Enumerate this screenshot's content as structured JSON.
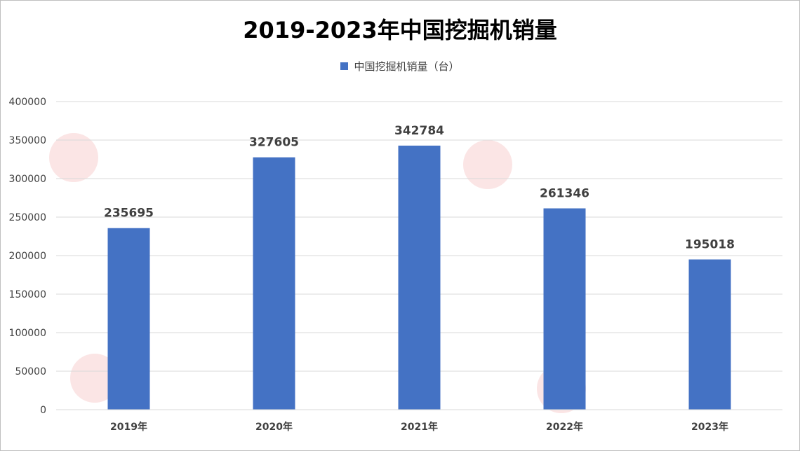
{
  "chart_data": {
    "type": "bar",
    "title": "2019-2023年中国挖掘机销量",
    "xlabel": "",
    "ylabel": "",
    "categories": [
      "2019年",
      "2020年",
      "2021年",
      "2022年",
      "2023年"
    ],
    "series": [
      {
        "name": "中国挖掘机销量（台）",
        "values": [
          235695,
          327605,
          342784,
          261346,
          195018
        ],
        "color": "#4472c4"
      }
    ],
    "ylim": [
      0,
      400000
    ],
    "yticks": [
      "0",
      "50000",
      "100000",
      "150000",
      "200000",
      "250000",
      "300000",
      "350000",
      "400000"
    ],
    "data_labels": [
      "235695",
      "327605",
      "342784",
      "261346",
      "195018"
    ],
    "grid": true,
    "legend_position": "top"
  }
}
